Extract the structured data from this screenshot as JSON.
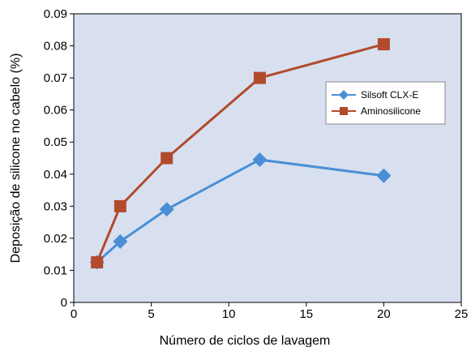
{
  "chart_data": {
    "type": "line",
    "title": "",
    "xlabel": "Número de ciclos de lavagem",
    "ylabel": "Deposição de silicone no cabelo (%)",
    "xlim": [
      0,
      25
    ],
    "ylim": [
      0,
      0.09
    ],
    "x_ticks": [
      "0",
      "5",
      "10",
      "15",
      "20",
      "25"
    ],
    "y_ticks": [
      "0",
      "0.01",
      "0.02",
      "0.03",
      "0.04",
      "0.05",
      "0.06",
      "0.07",
      "0.08",
      "0.09"
    ],
    "grid": false,
    "legend_position": "center-right",
    "background_color": "#d8e0f0",
    "series": [
      {
        "name": "Silsoft CLX-E",
        "color": "#4a8fd6",
        "marker": "diamond",
        "points": [
          {
            "x": 1.5,
            "y": 0.0125
          },
          {
            "x": 3,
            "y": 0.019
          },
          {
            "x": 6,
            "y": 0.029
          },
          {
            "x": 12,
            "y": 0.0445
          },
          {
            "x": 20,
            "y": 0.0395
          }
        ]
      },
      {
        "name": "Aminosilicone",
        "color": "#b24a2c",
        "marker": "square",
        "points": [
          {
            "x": 1.5,
            "y": 0.0125
          },
          {
            "x": 3,
            "y": 0.03
          },
          {
            "x": 6,
            "y": 0.045
          },
          {
            "x": 12,
            "y": 0.07
          },
          {
            "x": 20,
            "y": 0.0805
          }
        ]
      }
    ]
  }
}
